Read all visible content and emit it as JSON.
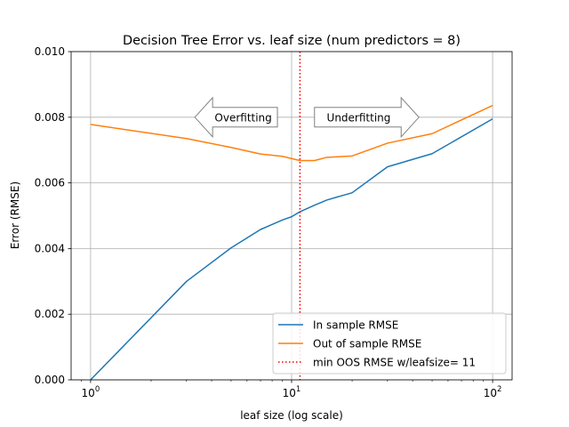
{
  "chart_data": {
    "type": "line",
    "title": "Decision Tree Error vs. leaf size (num predictors = 8)",
    "xlabel": "leaf size (log scale)",
    "ylabel": "Error (RMSE)",
    "xscale": "log",
    "xlim": [
      0.8,
      125
    ],
    "ylim": [
      0,
      0.01
    ],
    "x_ticks": [
      {
        "value": 1,
        "base": "10",
        "exp": "0"
      },
      {
        "value": 10,
        "base": "10",
        "exp": "1"
      },
      {
        "value": 100,
        "base": "10",
        "exp": "2"
      }
    ],
    "y_ticks": [
      {
        "value": 0,
        "label": "0.000"
      },
      {
        "value": 0.002,
        "label": "0.002"
      },
      {
        "value": 0.004,
        "label": "0.004"
      },
      {
        "value": 0.006,
        "label": "0.006"
      },
      {
        "value": 0.008,
        "label": "0.008"
      },
      {
        "value": 0.01,
        "label": "0.010"
      }
    ],
    "grid": true,
    "legend_position": "lower-right",
    "series": [
      {
        "name": "In sample RMSE",
        "color": "#1f77b4",
        "style": "solid",
        "x": [
          1,
          3,
          5,
          7,
          9,
          10,
          11,
          13,
          15,
          20,
          30,
          50,
          100
        ],
        "y": [
          0.0,
          0.003,
          0.00402,
          0.00458,
          0.00487,
          0.00497,
          0.00512,
          0.00532,
          0.00548,
          0.0057,
          0.00649,
          0.00689,
          0.00795
        ]
      },
      {
        "name": "Out of sample RMSE",
        "color": "#ff7f0e",
        "style": "solid",
        "x": [
          1,
          3,
          5,
          7,
          9,
          10,
          11,
          13,
          15,
          20,
          30,
          50,
          100
        ],
        "y": [
          0.00778,
          0.00735,
          0.00708,
          0.00688,
          0.00681,
          0.00674,
          0.00668,
          0.00668,
          0.00678,
          0.00682,
          0.00721,
          0.0075,
          0.00836
        ]
      }
    ],
    "vline": {
      "name": "min OOS RMSE w/leafsize= 11",
      "x": 11,
      "color": "#ff0000",
      "style": "dotted"
    },
    "annotations": [
      {
        "text": "Overfitting",
        "direction": "left",
        "x_from": 3.3,
        "x_to": 8.5,
        "y": 0.008
      },
      {
        "text": "Underfitting",
        "direction": "right",
        "x_from": 13,
        "x_to": 43,
        "y": 0.008
      }
    ]
  }
}
